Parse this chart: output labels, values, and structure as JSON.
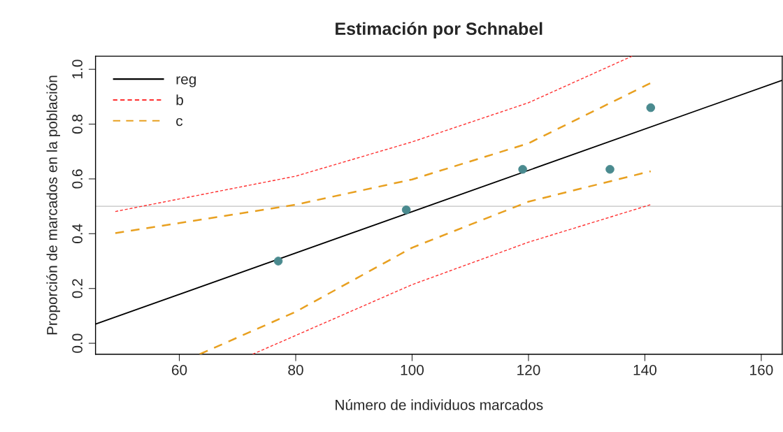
{
  "chart_data": {
    "type": "line",
    "title": "Estimación por Schnabel",
    "xlabel": "Número de individuos marcados",
    "ylabel": "Proporción de marcados en la población",
    "xlim": [
      45.6,
      163.6
    ],
    "ylim": [
      -0.04,
      1.048
    ],
    "xticks": [
      60,
      80,
      100,
      120,
      140,
      160
    ],
    "yticks": [
      {
        "value": 0,
        "label": "0.0"
      },
      0.2,
      0.4,
      0.6,
      0.8,
      {
        "value": 1,
        "label": "1.0"
      }
    ],
    "grid": false,
    "legend": "top left",
    "ref_lines": [
      {
        "axis": "y",
        "value": 0.5,
        "color": "#d3d3d3",
        "line_style": "solid"
      }
    ],
    "series": [
      {
        "type": "scatter",
        "color": "#4a8a8f",
        "marker": "circle",
        "x": [
          77,
          99,
          119,
          134,
          141
        ],
        "values": [
          0.3,
          0.487,
          0.635,
          0.635,
          0.86
        ]
      },
      {
        "name": "reg",
        "color": "#000000",
        "line_style": "solid",
        "x": [
          45.6,
          163.6
        ],
        "values": [
          0.07,
          0.96
        ]
      },
      {
        "name": "b",
        "color": "#ff3030",
        "line_style": "dotted",
        "x": [
          49,
          80,
          100,
          120,
          137.8
        ],
        "values": [
          0.481,
          0.61,
          0.735,
          0.878,
          1.048
        ]
      },
      {
        "color": "#ff3030",
        "line_style": "dotted",
        "x": [
          72.6,
          100,
          120,
          141
        ],
        "values": [
          -0.04,
          0.214,
          0.369,
          0.506
        ]
      },
      {
        "name": "c",
        "color": "#e8a020",
        "line_style": "dashed",
        "x": [
          49,
          80,
          100,
          120,
          141
        ],
        "values": [
          0.402,
          0.506,
          0.598,
          0.73,
          0.95
        ]
      },
      {
        "color": "#e8a020",
        "line_style": "dashed",
        "x": [
          63.5,
          80,
          100,
          120,
          141
        ],
        "values": [
          -0.04,
          0.115,
          0.349,
          0.517,
          0.628
        ]
      }
    ]
  }
}
